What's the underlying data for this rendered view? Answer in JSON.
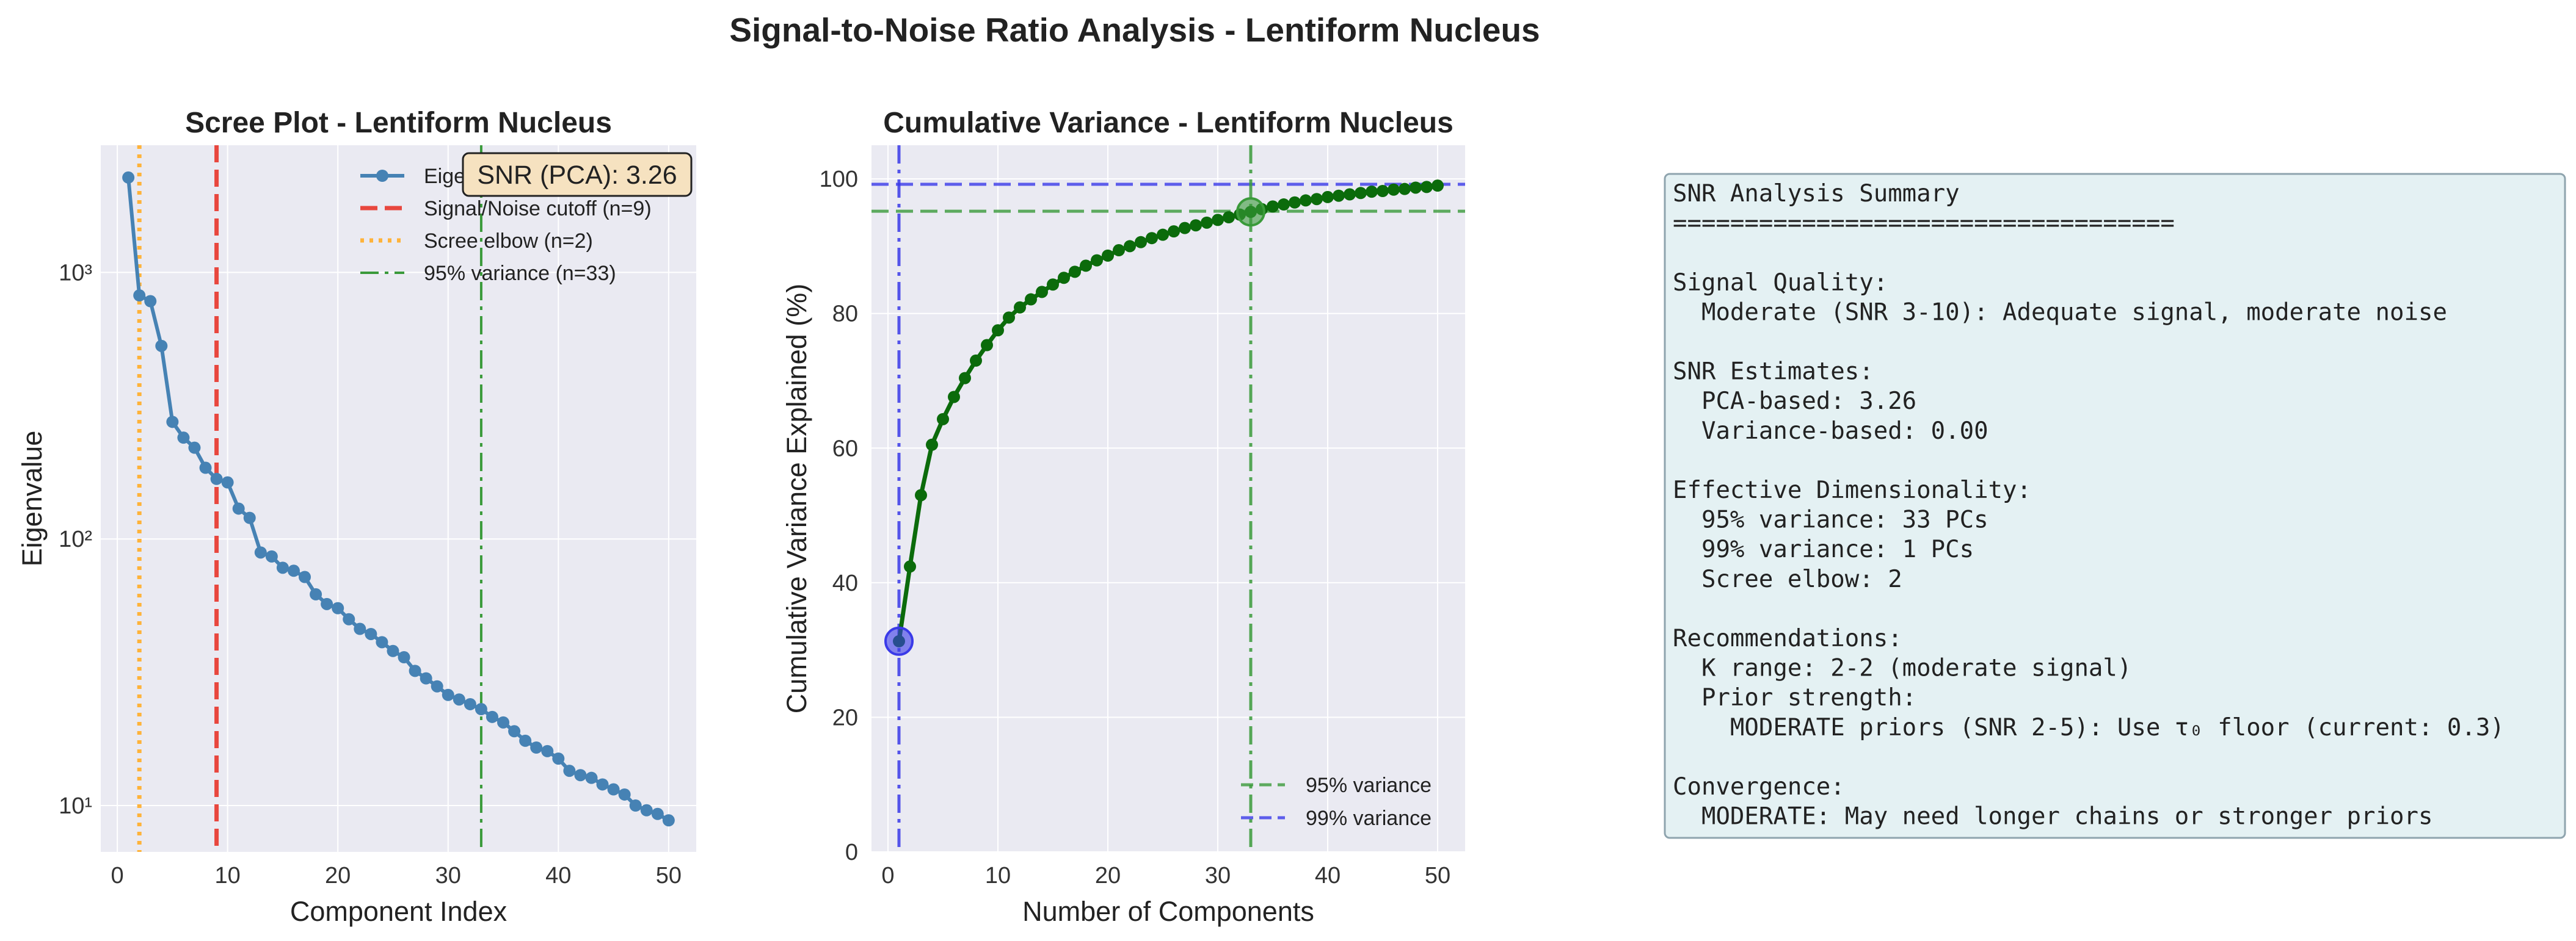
{
  "figure": {
    "suptitle": "Signal-to-Noise Ratio Analysis - Lentiform Nucleus"
  },
  "colors": {
    "background": "#EAEAF2",
    "grid": "#FFFFFF",
    "eigen_line": "#4682B4",
    "cutoff_line": "#E8473E",
    "elbow_line": "#FFB33A",
    "variance95_line": "#3A9A3A",
    "variance99_line": "#3A3AE8",
    "cumulative_line": "#0B6B0B",
    "snr_box_fill": "#F6E2C0",
    "summary_box_fill": "#E4F1F3",
    "summary_box_border": "#8FA4AE"
  },
  "chart_data": [
    {
      "type": "line",
      "title": "Scree Plot - Lentiform Nucleus",
      "xlabel": "Component Index",
      "ylabel": "Eigenvalue",
      "yscale": "log",
      "xlim": [
        -1.5,
        52.5
      ],
      "ylim": [
        6.7,
        3000
      ],
      "xticks": [
        0,
        10,
        20,
        30,
        40,
        50
      ],
      "yticks": [
        10,
        100,
        1000
      ],
      "ytick_labels": [
        "10¹",
        "10²",
        "10³"
      ],
      "grid": true,
      "legend_position": "upper right",
      "series": [
        {
          "name": "Eigenvalues",
          "x": [
            1,
            2,
            3,
            4,
            5,
            6,
            7,
            8,
            9,
            10,
            11,
            12,
            13,
            14,
            15,
            16,
            17,
            18,
            19,
            20,
            21,
            22,
            23,
            24,
            25,
            26,
            27,
            28,
            29,
            30,
            31,
            32,
            33,
            34,
            35,
            36,
            37,
            38,
            39,
            40,
            41,
            42,
            43,
            44,
            45,
            46,
            47,
            48,
            49,
            50
          ],
          "values": [
            2270,
            820,
            780,
            530,
            275,
            240,
            220,
            185,
            168,
            163,
            130,
            120,
            89,
            86,
            78,
            76,
            72,
            62,
            57,
            55,
            50,
            46,
            44,
            41,
            38,
            36,
            32,
            30,
            28,
            26,
            25,
            24,
            23,
            21.5,
            20.5,
            19,
            17.5,
            16.5,
            16,
            15,
            13.5,
            13,
            12.7,
            12,
            11.5,
            11,
            10,
            9.6,
            9.3,
            8.8
          ]
        }
      ],
      "vlines": [
        {
          "label": "Signal/Noise cutoff (n=9)",
          "x": 9,
          "style": "dashed"
        },
        {
          "label": "Scree elbow (n=2)",
          "x": 2,
          "style": "dotted"
        },
        {
          "label": "95% variance (n=33)",
          "x": 33,
          "style": "dashdot"
        }
      ],
      "annotation": "SNR (PCA): 3.26"
    },
    {
      "type": "line",
      "title": "Cumulative Variance - Lentiform Nucleus",
      "xlabel": "Number of Components",
      "ylabel": "Cumulative Variance Explained (%)",
      "xlim": [
        -1.5,
        52.5
      ],
      "ylim": [
        0,
        105
      ],
      "xticks": [
        0,
        10,
        20,
        30,
        40,
        50
      ],
      "yticks": [
        0,
        20,
        40,
        60,
        80,
        100
      ],
      "grid": true,
      "legend_position": "lower right",
      "series": [
        {
          "name": "",
          "x": [
            1,
            2,
            3,
            4,
            5,
            6,
            7,
            8,
            9,
            10,
            11,
            12,
            13,
            14,
            15,
            16,
            17,
            18,
            19,
            20,
            21,
            22,
            23,
            24,
            25,
            26,
            27,
            28,
            29,
            30,
            31,
            32,
            33,
            34,
            35,
            36,
            37,
            38,
            39,
            40,
            41,
            42,
            43,
            44,
            45,
            46,
            47,
            48,
            49,
            50
          ],
          "values": [
            31.3,
            42.4,
            53.0,
            60.5,
            64.3,
            67.6,
            70.4,
            73.0,
            75.3,
            77.5,
            79.4,
            80.9,
            82.1,
            83.2,
            84.3,
            85.3,
            86.2,
            87.1,
            87.9,
            88.6,
            89.4,
            90.0,
            90.6,
            91.2,
            91.7,
            92.2,
            92.7,
            93.1,
            93.5,
            93.9,
            94.3,
            94.7,
            95.1,
            95.5,
            95.9,
            96.2,
            96.5,
            96.8,
            97.0,
            97.3,
            97.5,
            97.7,
            97.9,
            98.1,
            98.2,
            98.4,
            98.5,
            98.7,
            98.8,
            99.0
          ]
        }
      ],
      "hlines": [
        {
          "label": "95% variance",
          "y": 95.2,
          "style": "dashed"
        },
        {
          "label": "99% variance",
          "y": 99.2,
          "style": "dashed"
        }
      ],
      "vlines": [
        {
          "x": 33,
          "style": "dashdot",
          "color_key": "variance95_line"
        },
        {
          "x": 1,
          "style": "dashdot",
          "color_key": "variance99_line"
        }
      ],
      "highlight_points": [
        {
          "x": 1,
          "y": 31.3,
          "color_key": "variance99_line"
        },
        {
          "x": 33,
          "y": 95.1,
          "color_key": "variance95_line"
        }
      ]
    }
  ],
  "summary": {
    "lines": [
      "SNR Analysis Summary",
      "===================================",
      "",
      "Signal Quality:",
      "  Moderate (SNR 3-10): Adequate signal, moderate noise",
      "",
      "SNR Estimates:",
      "  PCA-based: 3.26",
      "  Variance-based: 0.00",
      "",
      "Effective Dimensionality:",
      "  95% variance: 33 PCs",
      "  99% variance: 1 PCs",
      "  Scree elbow: 2",
      "",
      "Recommendations:",
      "  K range: 2-2 (moderate signal)",
      "  Prior strength:",
      "    MODERATE priors (SNR 2-5): Use τ₀ floor (current: 0.3)",
      "",
      "Convergence:",
      "  MODERATE: May need longer chains or stronger priors"
    ]
  }
}
